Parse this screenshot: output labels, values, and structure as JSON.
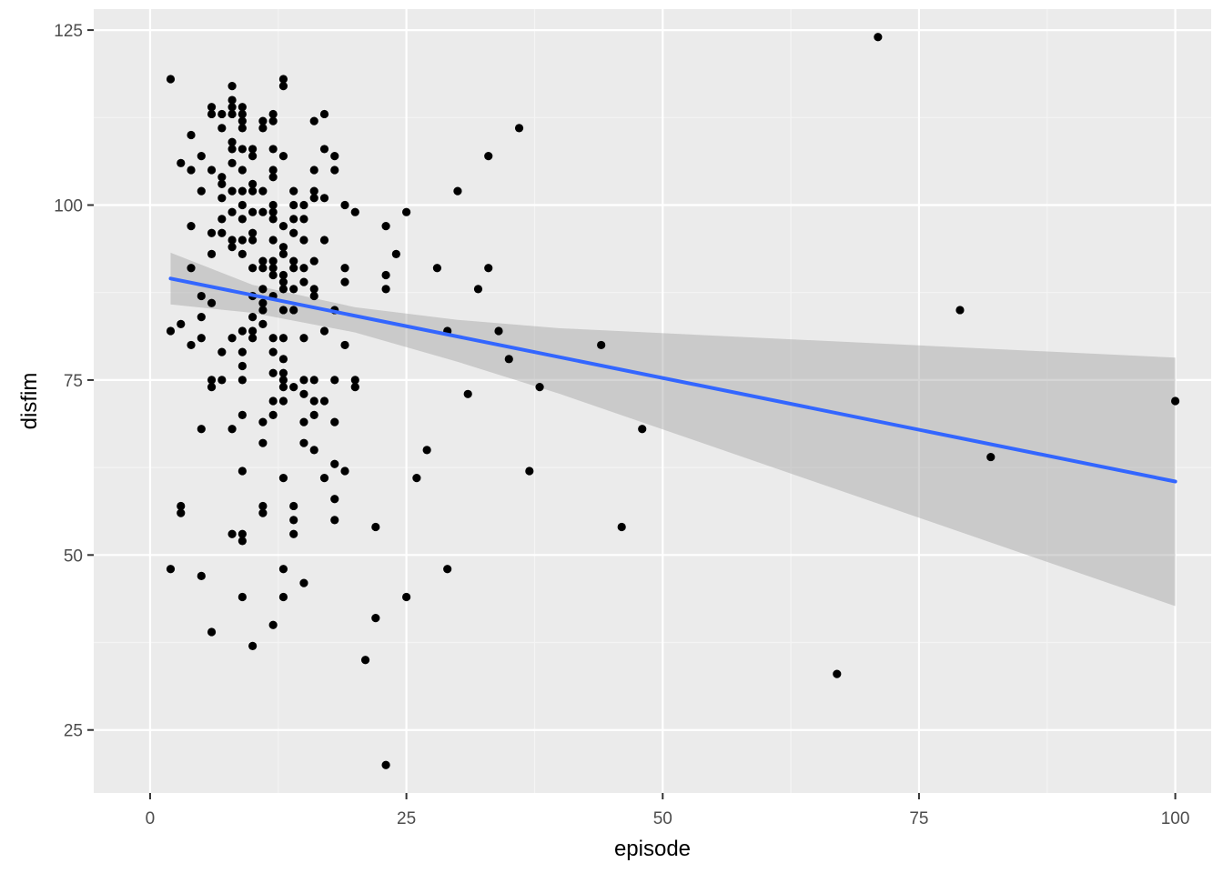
{
  "chart_data": {
    "type": "scatter",
    "title": "",
    "xlabel": "episode",
    "ylabel": "disfim",
    "xlim": [
      -5.5,
      103.5
    ],
    "ylim": [
      16,
      128
    ],
    "x_ticks": [
      0,
      25,
      50,
      75,
      100
    ],
    "y_ticks": [
      25,
      50,
      75,
      100,
      125
    ],
    "grid": true,
    "legend": "none",
    "colors": {
      "panel": "#ebebeb",
      "grid_major": "#ffffff",
      "grid_minor": "#f4f4f4",
      "point": "#000000",
      "fit_line": "#3366ff",
      "ribbon": "#999999"
    },
    "points": [
      [
        2,
        118
      ],
      [
        2,
        82
      ],
      [
        2,
        48
      ],
      [
        3,
        106
      ],
      [
        3,
        83
      ],
      [
        3,
        57
      ],
      [
        3,
        56
      ],
      [
        4,
        110
      ],
      [
        4,
        105
      ],
      [
        4,
        97
      ],
      [
        4,
        91
      ],
      [
        4,
        80
      ],
      [
        5,
        107
      ],
      [
        5,
        102
      ],
      [
        5,
        87
      ],
      [
        5,
        84
      ],
      [
        5,
        81
      ],
      [
        5,
        68
      ],
      [
        5,
        47
      ],
      [
        6,
        114
      ],
      [
        6,
        113
      ],
      [
        6,
        105
      ],
      [
        6,
        96
      ],
      [
        6,
        93
      ],
      [
        6,
        86
      ],
      [
        6,
        75
      ],
      [
        6,
        74
      ],
      [
        6,
        39
      ],
      [
        7,
        113
      ],
      [
        7,
        111
      ],
      [
        7,
        104
      ],
      [
        7,
        103
      ],
      [
        7,
        101
      ],
      [
        7,
        98
      ],
      [
        7,
        96
      ],
      [
        7,
        79
      ],
      [
        7,
        75
      ],
      [
        8,
        117
      ],
      [
        8,
        115
      ],
      [
        8,
        114
      ],
      [
        8,
        113
      ],
      [
        8,
        109
      ],
      [
        8,
        108
      ],
      [
        8,
        106
      ],
      [
        8,
        102
      ],
      [
        8,
        99
      ],
      [
        8,
        95
      ],
      [
        8,
        94
      ],
      [
        8,
        81
      ],
      [
        8,
        68
      ],
      [
        8,
        53
      ],
      [
        9,
        114
      ],
      [
        9,
        113
      ],
      [
        9,
        112
      ],
      [
        9,
        111
      ],
      [
        9,
        108
      ],
      [
        9,
        105
      ],
      [
        9,
        102
      ],
      [
        9,
        100
      ],
      [
        9,
        98
      ],
      [
        9,
        95
      ],
      [
        9,
        93
      ],
      [
        9,
        82
      ],
      [
        9,
        79
      ],
      [
        9,
        77
      ],
      [
        9,
        75
      ],
      [
        9,
        70
      ],
      [
        9,
        62
      ],
      [
        9,
        53
      ],
      [
        9,
        52
      ],
      [
        9,
        44
      ],
      [
        10,
        108
      ],
      [
        10,
        107
      ],
      [
        10,
        103
      ],
      [
        10,
        102
      ],
      [
        10,
        99
      ],
      [
        10,
        96
      ],
      [
        10,
        95
      ],
      [
        10,
        91
      ],
      [
        10,
        87
      ],
      [
        10,
        84
      ],
      [
        10,
        82
      ],
      [
        10,
        81
      ],
      [
        10,
        37
      ],
      [
        11,
        112
      ],
      [
        11,
        111
      ],
      [
        11,
        102
      ],
      [
        11,
        99
      ],
      [
        11,
        92
      ],
      [
        11,
        91
      ],
      [
        11,
        88
      ],
      [
        11,
        86
      ],
      [
        11,
        85
      ],
      [
        11,
        83
      ],
      [
        11,
        69
      ],
      [
        11,
        66
      ],
      [
        11,
        57
      ],
      [
        11,
        56
      ],
      [
        12,
        113
      ],
      [
        12,
        112
      ],
      [
        12,
        108
      ],
      [
        12,
        105
      ],
      [
        12,
        104
      ],
      [
        12,
        100
      ],
      [
        12,
        99
      ],
      [
        12,
        98
      ],
      [
        12,
        95
      ],
      [
        12,
        92
      ],
      [
        12,
        91
      ],
      [
        12,
        90
      ],
      [
        12,
        87
      ],
      [
        12,
        81
      ],
      [
        12,
        79
      ],
      [
        12,
        76
      ],
      [
        12,
        72
      ],
      [
        12,
        70
      ],
      [
        12,
        40
      ],
      [
        13,
        118
      ],
      [
        13,
        117
      ],
      [
        13,
        107
      ],
      [
        13,
        97
      ],
      [
        13,
        94
      ],
      [
        13,
        93
      ],
      [
        13,
        90
      ],
      [
        13,
        89
      ],
      [
        13,
        88
      ],
      [
        13,
        85
      ],
      [
        13,
        81
      ],
      [
        13,
        78
      ],
      [
        13,
        76
      ],
      [
        13,
        75
      ],
      [
        13,
        74
      ],
      [
        13,
        72
      ],
      [
        13,
        61
      ],
      [
        13,
        48
      ],
      [
        13,
        44
      ],
      [
        14,
        102
      ],
      [
        14,
        100
      ],
      [
        14,
        98
      ],
      [
        14,
        96
      ],
      [
        14,
        92
      ],
      [
        14,
        91
      ],
      [
        14,
        88
      ],
      [
        14,
        85
      ],
      [
        14,
        74
      ],
      [
        14,
        57
      ],
      [
        14,
        55
      ],
      [
        14,
        53
      ],
      [
        15,
        100
      ],
      [
        15,
        98
      ],
      [
        15,
        95
      ],
      [
        15,
        91
      ],
      [
        15,
        89
      ],
      [
        15,
        81
      ],
      [
        15,
        75
      ],
      [
        15,
        73
      ],
      [
        15,
        69
      ],
      [
        15,
        66
      ],
      [
        15,
        46
      ],
      [
        16,
        112
      ],
      [
        16,
        105
      ],
      [
        16,
        102
      ],
      [
        16,
        101
      ],
      [
        16,
        92
      ],
      [
        16,
        88
      ],
      [
        16,
        87
      ],
      [
        16,
        75
      ],
      [
        16,
        72
      ],
      [
        16,
        70
      ],
      [
        16,
        65
      ],
      [
        17,
        113
      ],
      [
        17,
        108
      ],
      [
        17,
        101
      ],
      [
        17,
        95
      ],
      [
        17,
        82
      ],
      [
        17,
        72
      ],
      [
        17,
        61
      ],
      [
        18,
        107
      ],
      [
        18,
        105
      ],
      [
        18,
        85
      ],
      [
        18,
        75
      ],
      [
        18,
        69
      ],
      [
        18,
        63
      ],
      [
        18,
        58
      ],
      [
        18,
        55
      ],
      [
        19,
        100
      ],
      [
        19,
        91
      ],
      [
        19,
        89
      ],
      [
        19,
        80
      ],
      [
        19,
        62
      ],
      [
        20,
        99
      ],
      [
        20,
        75
      ],
      [
        20,
        74
      ],
      [
        21,
        35
      ],
      [
        22,
        54
      ],
      [
        22,
        41
      ],
      [
        23,
        97
      ],
      [
        23,
        90
      ],
      [
        23,
        88
      ],
      [
        23,
        20
      ],
      [
        24,
        93
      ],
      [
        25,
        99
      ],
      [
        25,
        44
      ],
      [
        26,
        61
      ],
      [
        27,
        65
      ],
      [
        28,
        91
      ],
      [
        29,
        82
      ],
      [
        29,
        48
      ],
      [
        30,
        102
      ],
      [
        31,
        73
      ],
      [
        32,
        88
      ],
      [
        33,
        107
      ],
      [
        33,
        91
      ],
      [
        34,
        82
      ],
      [
        35,
        78
      ],
      [
        36,
        111
      ],
      [
        37,
        62
      ],
      [
        38,
        74
      ],
      [
        44,
        80
      ],
      [
        46,
        54
      ],
      [
        48,
        68
      ],
      [
        67,
        33
      ],
      [
        71,
        124
      ],
      [
        79,
        85
      ],
      [
        82,
        64
      ],
      [
        100,
        72
      ]
    ],
    "fit": {
      "x": [
        2,
        100
      ],
      "y": [
        89.5,
        60.5
      ],
      "ci_lower": [
        85.8,
        42.7
      ],
      "ci_upper": [
        93.2,
        78.2
      ],
      "ci_at_x": [
        10,
        20,
        30,
        40
      ],
      "ci_lower_mid": [
        84.6,
        81.8,
        77.6,
        73.0
      ],
      "ci_upper_mid": [
        88.6,
        85.4,
        83.6,
        82.4
      ]
    }
  }
}
